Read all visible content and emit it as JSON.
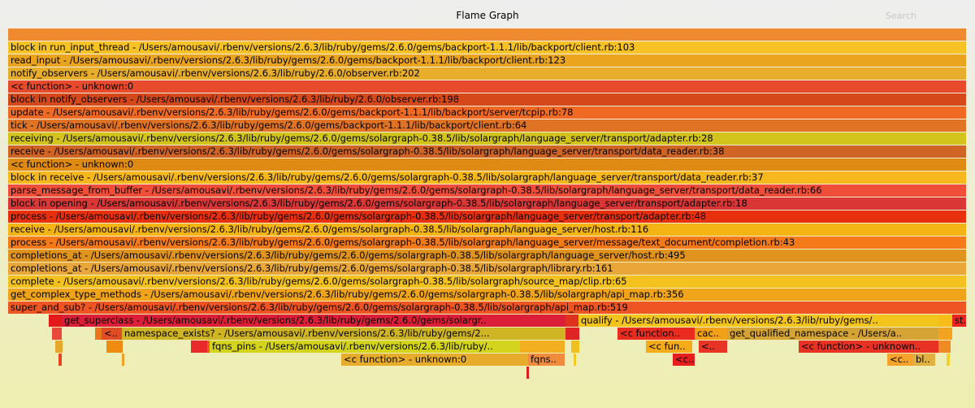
{
  "header": {
    "title": "Flame Graph",
    "search_label": "Search"
  },
  "frames": [
    {
      "label": "",
      "color": "#f08a30"
    },
    {
      "label": "block in run_input_thread - /Users/amousavi/.rbenv/versions/2.6.3/lib/ruby/gems/2.6.0/gems/backport-1.1.1/lib/backport/client.rb:103",
      "color": "#f7c225"
    },
    {
      "label": "read_input - /Users/amousavi/.rbenv/versions/2.6.3/lib/ruby/gems/2.6.0/gems/backport-1.1.1/lib/backport/client.rb:123",
      "color": "#eaa41e"
    },
    {
      "label": "notify_observers - /Users/amousavi/.rbenv/versions/2.6.3/lib/ruby/2.6.0/observer.rb:202",
      "color": "#e8ad2a"
    },
    {
      "label": "<c function> - unknown:0",
      "color": "#e84a2c"
    },
    {
      "label": "block in notify_observers - /Users/amousavi/.rbenv/versions/2.6.3/lib/ruby/2.6.0/observer.rb:198",
      "color": "#d4481a"
    },
    {
      "label": "update - /Users/amousavi/.rbenv/versions/2.6.3/lib/ruby/gems/2.6.0/gems/backport-1.1.1/lib/backport/server/tcpip.rb:78",
      "color": "#f06a24"
    },
    {
      "label": "tick - /Users/amousavi/.rbenv/versions/2.6.3/lib/ruby/gems/2.6.0/gems/backport-1.1.1/lib/backport/client.rb:64",
      "color": "#e07424"
    },
    {
      "label": "receiving - /Users/amousavi/.rbenv/versions/2.6.3/lib/ruby/gems/2.6.0/gems/solargraph-0.38.5/lib/solargraph/language_server/transport/adapter.rb:28",
      "color": "#d2c41c"
    },
    {
      "label": "receive - /Users/amousavi/.rbenv/versions/2.6.3/lib/ruby/gems/2.6.0/gems/solargraph-0.38.5/lib/solargraph/language_server/transport/data_reader.rb:38",
      "color": "#cf6424"
    },
    {
      "label": "<c function> - unknown:0",
      "color": "#df8a12"
    },
    {
      "label": "block in receive - /Users/amousavi/.rbenv/versions/2.6.3/lib/ruby/gems/2.6.0/gems/solargraph-0.38.5/lib/solargraph/language_server/transport/data_reader.rb:37",
      "color": "#f6b81c"
    },
    {
      "label": "parse_message_from_buffer - /Users/amousavi/.rbenv/versions/2.6.3/lib/ruby/gems/2.6.0/gems/solargraph-0.38.5/lib/solargraph/language_server/transport/data_reader.rb:66",
      "color": "#f04e38"
    },
    {
      "label": "block in opening - /Users/amousavi/.rbenv/versions/2.6.3/lib/ruby/gems/2.6.0/gems/solargraph-0.38.5/lib/solargraph/language_server/transport/adapter.rb:18",
      "color": "#da3636"
    },
    {
      "label": "process - /Users/amousavi/.rbenv/versions/2.6.3/lib/ruby/gems/2.6.0/gems/solargraph-0.38.5/lib/solargraph/language_server/transport/adapter.rb:48",
      "color": "#e8300e"
    },
    {
      "label": "receive - /Users/amousavi/.rbenv/versions/2.6.3/lib/ruby/gems/2.6.0/gems/solargraph-0.38.5/lib/solargraph/language_server/host.rb:116",
      "color": "#f4b414"
    },
    {
      "label": "process - /Users/amousavi/.rbenv/versions/2.6.3/lib/ruby/gems/2.6.0/gems/solargraph-0.38.5/lib/solargraph/language_server/message/text_document/completion.rb:43",
      "color": "#f57b1a"
    },
    {
      "label": "completions_at - /Users/amousavi/.rbenv/versions/2.6.3/lib/ruby/gems/2.6.0/gems/solargraph-0.38.5/lib/solargraph/language_server/host.rb:495",
      "color": "#e0941e"
    },
    {
      "label": "completions_at - /Users/amousavi/.rbenv/versions/2.6.3/lib/ruby/gems/2.6.0/gems/solargraph-0.38.5/lib/solargraph/library.rb:161",
      "color": "#e8a738"
    },
    {
      "label": "complete - /Users/amousavi/.rbenv/versions/2.6.3/lib/ruby/gems/2.6.0/gems/solargraph-0.38.5/lib/solargraph/source_map/clip.rb:65",
      "color": "#f4c21e"
    },
    {
      "label": "get_complex_type_methods - /Users/amousavi/.rbenv/versions/2.6.3/lib/ruby/gems/2.6.0/gems/solargraph-0.38.5/lib/solargraph/api_map.rb:356",
      "color": "#f0a41a"
    },
    {
      "label": "super_and_sub? - /Users/amousavi/.rbenv/versions/2.6.3/lib/ruby/gems/2.6.0/gems/solargraph-0.38.5/lib/solargraph/api_map.rb:519",
      "color": "#ee5522"
    },
    {
      "label": "",
      "color": "#e41a1a"
    },
    {
      "label": "get_superclass - /Users/amousavi/.rbenv/versions/2.6.3/lib/ruby/gems/2.6.0/gems/solargr..",
      "color": "#dc1e38"
    },
    {
      "label": "",
      "color": "#e0301e"
    },
    {
      "label": "qualify - /Users/amousavi/.rbenv/versions/2.6.3/lib/ruby/gems/..",
      "color": "#f2c41c"
    },
    {
      "label": "",
      "color": "#f7bd18"
    },
    {
      "label": "st..",
      "color": "#e8251e"
    },
    {
      "label": "",
      "color": "#e8771c"
    },
    {
      "label": "<..",
      "color": "#e04c24"
    },
    {
      "label": "namespace_exists? - /Users/amousavi/.rbenv/versions/2.6.3/lib/ruby/gems/2...",
      "color": "#cfb424"
    },
    {
      "label": "",
      "color": "#e02424"
    },
    {
      "label": "<c function..",
      "color": "#ea2c1e"
    },
    {
      "label": "cac..",
      "color": "#f2a01a"
    },
    {
      "label": "get_qualified_namespace - /Users/a..",
      "color": "#d6a434"
    },
    {
      "label": "",
      "color": "#f2a322"
    },
    {
      "label": "",
      "color": "#e84a3c"
    },
    {
      "label": "",
      "color": "#e8a72a"
    },
    {
      "label": "",
      "color": "#ed8c10"
    },
    {
      "label": "",
      "color": "#e82a2a"
    },
    {
      "label": "",
      "color": "#f05a1a"
    },
    {
      "label": "fqns_pins - /Users/amousavi/.rbenv/versions/2.6.3/lib/ruby/..",
      "color": "#d4d41c"
    },
    {
      "label": "",
      "color": "#f2b020"
    },
    {
      "label": "<c fun..",
      "color": "#f6ac1a"
    },
    {
      "label": "<..",
      "color": "#e83424"
    },
    {
      "label": "<c function> - unknown..",
      "color": "#e83224"
    },
    {
      "label": "",
      "color": "#f08a24"
    },
    {
      "label": "",
      "color": "#f2c01c"
    },
    {
      "label": "",
      "color": "#e84424"
    },
    {
      "label": "",
      "color": "#f0a024"
    },
    {
      "label": "<c function> - unknown:0",
      "color": "#e8ac2c"
    },
    {
      "label": "fqns..",
      "color": "#f08c3c"
    },
    {
      "label": "",
      "color": "#f2c824"
    },
    {
      "label": "<c..",
      "color": "#e81e1e"
    },
    {
      "label": "<c..",
      "color": "#f7a22a"
    },
    {
      "label": "bl..",
      "color": "#e0b040"
    },
    {
      "label": "",
      "color": "#f4d02a"
    },
    {
      "label": "",
      "color": "#e01e1e"
    }
  ]
}
